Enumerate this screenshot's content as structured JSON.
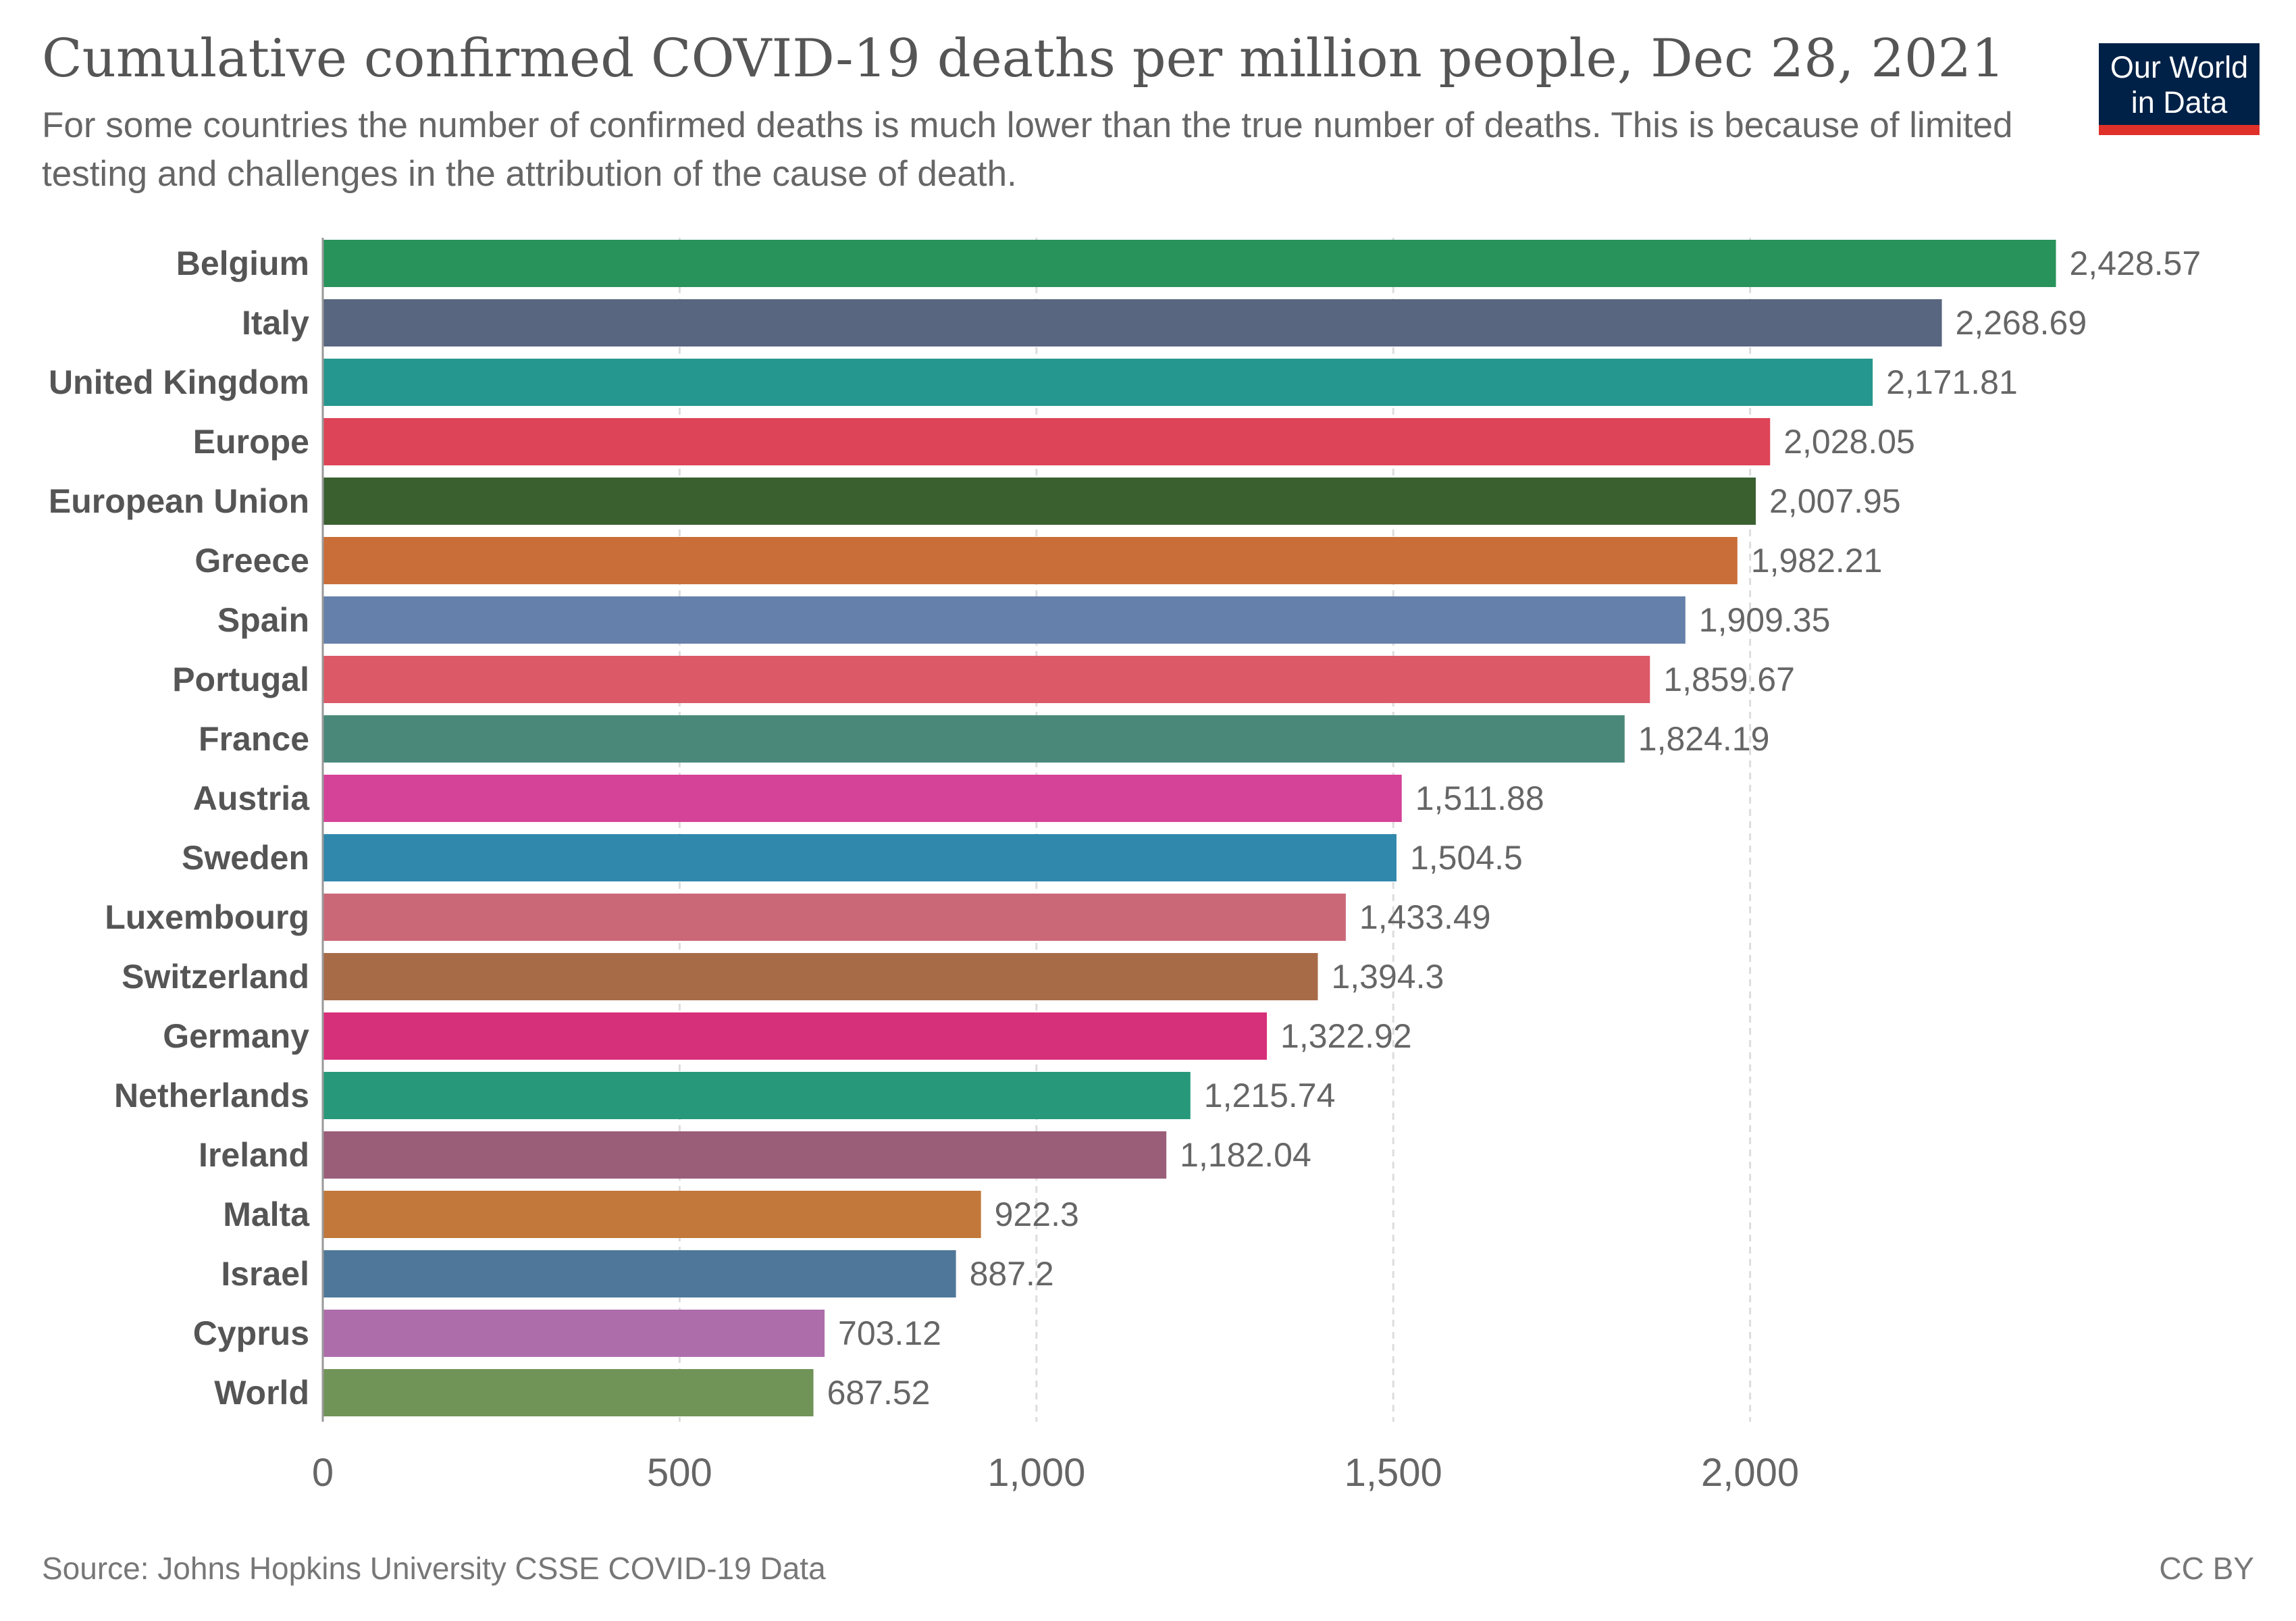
{
  "header": {
    "title": "Cumulative confirmed COVID-19 deaths per million people, Dec 28, 2021",
    "subtitle": "For some countries the number of confirmed deaths is much lower than the true number of deaths. This is because of limited testing and challenges in the attribution of the cause of death.",
    "logo_line1": "Our World",
    "logo_line2": "in Data"
  },
  "footer": {
    "source": "Source: Johns Hopkins University CSSE COVID-19 Data",
    "license": "CC BY"
  },
  "colors": {
    "logo_bg": "#002147",
    "logo_accent": "#e0302a"
  },
  "chart_data": {
    "type": "bar",
    "orientation": "horizontal",
    "title": "Cumulative confirmed COVID-19 deaths per million people, Dec 28, 2021",
    "xlabel": "",
    "ylabel": "",
    "xlim": [
      0,
      2500
    ],
    "x_ticks": [
      0,
      500,
      1000,
      1500,
      2000
    ],
    "x_tick_labels": [
      "0",
      "500",
      "1,000",
      "1,500",
      "2,000"
    ],
    "grid": "vertical dashed",
    "categories": [
      "Belgium",
      "Italy",
      "United Kingdom",
      "Europe",
      "European Union",
      "Greece",
      "Spain",
      "Portugal",
      "France",
      "Austria",
      "Sweden",
      "Luxembourg",
      "Switzerland",
      "Germany",
      "Netherlands",
      "Ireland",
      "Malta",
      "Israel",
      "Cyprus",
      "World"
    ],
    "values": [
      2428.57,
      2268.69,
      2171.81,
      2028.05,
      2007.95,
      1982.21,
      1909.35,
      1859.67,
      1824.19,
      1511.88,
      1504.5,
      1433.49,
      1394.3,
      1322.92,
      1215.74,
      1182.04,
      922.3,
      887.2,
      703.12,
      687.52
    ],
    "value_labels": [
      "2,428.57",
      "2,268.69",
      "2,171.81",
      "2,028.05",
      "2,007.95",
      "1,982.21",
      "1,909.35",
      "1,859.67",
      "1,824.19",
      "1,511.88",
      "1,504.5",
      "1,433.49",
      "1,394.3",
      "1,322.92",
      "1,215.74",
      "1,182.04",
      "922.3",
      "887.2",
      "703.12",
      "687.52"
    ],
    "bar_colors": [
      "#28935a",
      "#58667f",
      "#26978e",
      "#dd4457",
      "#3a602f",
      "#c96e38",
      "#6580aa",
      "#dc5968",
      "#4a897a",
      "#d54398",
      "#3088ac",
      "#cb6878",
      "#a86b48",
      "#d7307a",
      "#27987a",
      "#9b5e79",
      "#c1783a",
      "#4f7799",
      "#ad6daa",
      "#709458"
    ]
  }
}
